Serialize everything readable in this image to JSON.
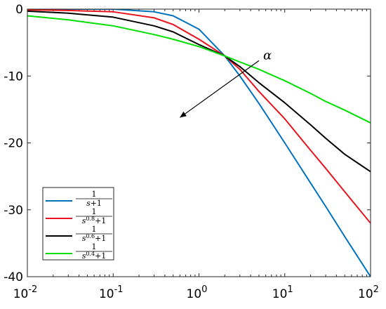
{
  "chart_data": {
    "type": "line",
    "title": "",
    "xlabel": "",
    "ylabel": "",
    "x_scale": "log",
    "xlim": [
      0.01,
      100
    ],
    "ylim": [
      -40,
      0
    ],
    "x_ticks": [
      0.01,
      0.1,
      1,
      10,
      100
    ],
    "x_tick_labels": [
      {
        "base": "10",
        "exp": "-2"
      },
      {
        "base": "10",
        "exp": "-1"
      },
      {
        "base": "10",
        "exp": "0"
      },
      {
        "base": "10",
        "exp": "1"
      },
      {
        "base": "10",
        "exp": "2"
      }
    ],
    "y_ticks": [
      0,
      -10,
      -20,
      -30,
      -40
    ],
    "y_tick_labels": [
      "0",
      "-10",
      "-20",
      "-30",
      "-40"
    ],
    "grid": false,
    "legend_position": "bottom-left",
    "series": [
      {
        "legend": {
          "num": "1",
          "base": "s",
          "exp": "",
          "tail": "+1"
        },
        "alpha": 1.0,
        "color": "#0072BD",
        "x": [
          0.01,
          0.03,
          0.1,
          0.3,
          0.5,
          1,
          2,
          3,
          5,
          10,
          20,
          30,
          50,
          100
        ],
        "y": [
          0,
          0,
          0,
          -0.4,
          -1.0,
          -3.0,
          -7.0,
          -10.0,
          -14.1,
          -20.0,
          -26.0,
          -29.5,
          -34.0,
          -40.0
        ]
      },
      {
        "legend": {
          "num": "1",
          "base": "s",
          "exp": "0.8",
          "tail": "+1"
        },
        "alpha": 0.8,
        "color": "#E8141E",
        "x": [
          0.01,
          0.03,
          0.1,
          0.3,
          0.5,
          1,
          2,
          3,
          5,
          10,
          20,
          30,
          50,
          100
        ],
        "y": [
          -0.1,
          -0.2,
          -0.4,
          -1.3,
          -2.3,
          -4.5,
          -7.0,
          -9.0,
          -12.3,
          -16.4,
          -21.1,
          -23.8,
          -27.3,
          -32.0
        ]
      },
      {
        "legend": {
          "num": "1",
          "base": "s",
          "exp": "0.6",
          "tail": "+1"
        },
        "alpha": 0.6,
        "color": "#000000",
        "x": [
          0.01,
          0.03,
          0.1,
          0.3,
          0.5,
          1,
          2,
          3,
          5,
          10,
          20,
          30,
          50,
          100
        ],
        "y": [
          -0.3,
          -0.6,
          -1.2,
          -2.5,
          -3.4,
          -5.3,
          -7.0,
          -8.6,
          -11.0,
          -14.0,
          -17.3,
          -19.3,
          -21.7,
          -24.3
        ]
      },
      {
        "legend": {
          "num": "1",
          "base": "s",
          "exp": "0.4",
          "tail": "+1"
        },
        "alpha": 0.4,
        "color": "#00E000",
        "x": [
          0.01,
          0.03,
          0.1,
          0.3,
          0.5,
          1,
          2,
          3,
          5,
          10,
          20,
          30,
          50,
          100
        ],
        "y": [
          -1.0,
          -1.6,
          -2.5,
          -3.8,
          -4.5,
          -5.6,
          -7.0,
          -7.9,
          -9.0,
          -10.7,
          -12.6,
          -13.8,
          -15.1,
          -17.0
        ]
      }
    ],
    "annotation": {
      "label": "α",
      "meaning": "arrow direction of increasing α",
      "from": {
        "x": 5,
        "y": -7.7
      },
      "to": {
        "x": 0.6,
        "y": -16.2
      }
    }
  }
}
